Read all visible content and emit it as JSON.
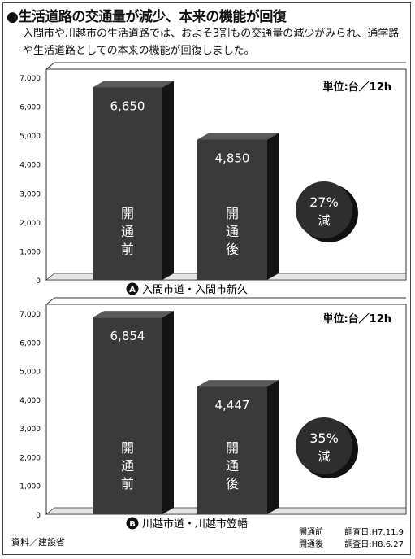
{
  "header": {
    "title": "●生活道路の交通量が減少、本来の機能が回復",
    "subtitle": "入間市や川越市の生活道路では、およそ3割もの交通量の減少がみられ、通学路や生活道路としての本来の機能が回復しました。"
  },
  "chart_data": [
    {
      "type": "bar",
      "unit_label": "単位:台／12h",
      "ylim": [
        0,
        7000
      ],
      "yticks": [
        "0",
        "1,000",
        "2,000",
        "3,000",
        "4,000",
        "5,000",
        "6,000",
        "7,000"
      ],
      "bars": [
        {
          "label": "開通前",
          "value": 6650,
          "value_label": "6,650"
        },
        {
          "label": "開通後",
          "value": 4850,
          "value_label": "4,850"
        }
      ],
      "reduction": {
        "percent": "27%",
        "text": "減"
      },
      "caption_marker": "A",
      "caption": "入間市道・入間市新久"
    },
    {
      "type": "bar",
      "unit_label": "単位:台／12h",
      "ylim": [
        0,
        7000
      ],
      "yticks": [
        "0",
        "1,000",
        "2,000",
        "3,000",
        "4,000",
        "5,000",
        "6,000",
        "7,000"
      ],
      "bars": [
        {
          "label": "開通前",
          "value": 6854,
          "value_label": "6,854"
        },
        {
          "label": "開通後",
          "value": 4447,
          "value_label": "4,447"
        }
      ],
      "reduction": {
        "percent": "35%",
        "text": "減"
      },
      "caption_marker": "B",
      "caption": "川越市道・川越市笠幡"
    }
  ],
  "footer": {
    "source": "資料／建設省",
    "survey_notes": [
      {
        "label": "開通前",
        "date": "調査日:H7.11.9"
      },
      {
        "label": "開通後",
        "date": "調査日:H8.6.27"
      }
    ]
  },
  "colors": {
    "bar_front": "#3a3a3a",
    "bar_side": "#141414",
    "bar_top": "#5a5a5a",
    "background": "#ffffff"
  }
}
